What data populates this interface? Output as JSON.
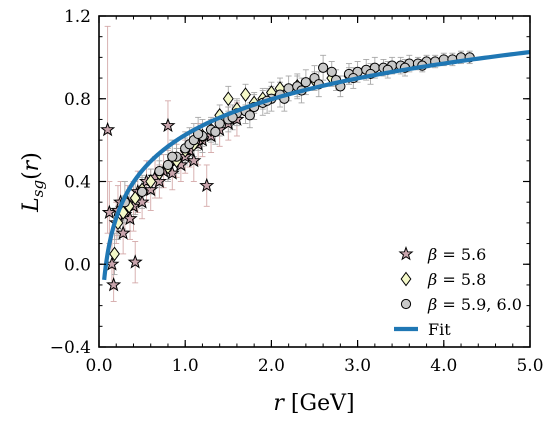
{
  "chart_data": {
    "type": "scatter",
    "xlabel": "r [GeV]",
    "ylabel": "L_sg(r)",
    "xlim": [
      0.0,
      5.0
    ],
    "ylim": [
      -0.4,
      1.2
    ],
    "xticks": [
      "0.0",
      "1.0",
      "2.0",
      "3.0",
      "4.0",
      "5.0"
    ],
    "yticks": [
      "−0.4",
      "0.0",
      "0.4",
      "0.8",
      "1.2"
    ],
    "grid": false,
    "legend_position": "bottom-right",
    "colors": {
      "fit": "#1f77b4",
      "star_fill": "#c9a5ad",
      "diamond_fill": "#f4f8c8",
      "circle_fill": "#c9c9c9",
      "errorbar": "#a8a8a8",
      "errorbar_star": "#d4a9a9"
    },
    "legend": [
      {
        "marker": "star",
        "label_prefix": "β = ",
        "label_value": "5.6"
      },
      {
        "marker": "diamond",
        "label_prefix": "β = ",
        "label_value": "5.8"
      },
      {
        "marker": "circle",
        "label_prefix": "β = ",
        "label_value": "5.9, 6.0"
      },
      {
        "marker": "line",
        "label_prefix": "",
        "label_value": "Fit"
      }
    ],
    "series": [
      {
        "marker": "star",
        "points": [
          [
            0.1,
            0.65,
            0.5
          ],
          [
            0.12,
            0.25,
            0.15
          ],
          [
            0.15,
            0.0,
            0.12
          ],
          [
            0.17,
            -0.1,
            0.08
          ],
          [
            0.2,
            0.2,
            0.1
          ],
          [
            0.22,
            0.26,
            0.12
          ],
          [
            0.25,
            0.3,
            0.1
          ],
          [
            0.28,
            0.15,
            0.1
          ],
          [
            0.3,
            0.24,
            0.08
          ],
          [
            0.33,
            0.3,
            0.08
          ],
          [
            0.36,
            0.22,
            0.1
          ],
          [
            0.4,
            0.28,
            0.12
          ],
          [
            0.42,
            0.01,
            0.1
          ],
          [
            0.45,
            0.35,
            0.1
          ],
          [
            0.5,
            0.3,
            0.08
          ],
          [
            0.55,
            0.4,
            0.1
          ],
          [
            0.6,
            0.36,
            0.1
          ],
          [
            0.65,
            0.42,
            0.1
          ],
          [
            0.7,
            0.4,
            0.08
          ],
          [
            0.75,
            0.45,
            0.08
          ],
          [
            0.8,
            0.67,
            0.12
          ],
          [
            0.85,
            0.44,
            0.08
          ],
          [
            0.9,
            0.5,
            0.08
          ],
          [
            0.95,
            0.48,
            0.08
          ],
          [
            1.0,
            0.52,
            0.08
          ],
          [
            1.05,
            0.55,
            0.08
          ],
          [
            1.1,
            0.5,
            0.1
          ],
          [
            1.15,
            0.58,
            0.1
          ],
          [
            1.2,
            0.6,
            0.08
          ],
          [
            1.25,
            0.38,
            0.1
          ],
          [
            1.3,
            0.62,
            0.08
          ],
          [
            1.4,
            0.65,
            0.08
          ],
          [
            1.5,
            0.68,
            0.08
          ],
          [
            1.6,
            0.7,
            0.08
          ]
        ]
      },
      {
        "marker": "diamond",
        "points": [
          [
            0.18,
            0.05,
            0.1
          ],
          [
            0.22,
            0.2,
            0.08
          ],
          [
            0.28,
            0.25,
            0.08
          ],
          [
            0.35,
            0.28,
            0.08
          ],
          [
            0.42,
            0.32,
            0.08
          ],
          [
            0.5,
            0.36,
            0.06
          ],
          [
            0.6,
            0.4,
            0.06
          ],
          [
            0.7,
            0.44,
            0.06
          ],
          [
            0.8,
            0.47,
            0.06
          ],
          [
            0.9,
            0.5,
            0.06
          ],
          [
            1.0,
            0.55,
            0.06
          ],
          [
            1.1,
            0.58,
            0.06
          ],
          [
            1.2,
            0.62,
            0.05
          ],
          [
            1.3,
            0.65,
            0.05
          ],
          [
            1.4,
            0.72,
            0.05
          ],
          [
            1.5,
            0.8,
            0.06
          ],
          [
            1.6,
            0.75,
            0.05
          ],
          [
            1.7,
            0.82,
            0.05
          ],
          [
            1.8,
            0.78,
            0.05
          ],
          [
            1.9,
            0.8,
            0.05
          ],
          [
            2.0,
            0.83,
            0.05
          ],
          [
            2.1,
            0.85,
            0.05
          ],
          [
            2.3,
            0.86,
            0.05
          ],
          [
            2.5,
            0.89,
            0.04
          ],
          [
            2.7,
            0.9,
            0.04
          ],
          [
            2.9,
            0.91,
            0.04
          ]
        ]
      },
      {
        "marker": "circle",
        "points": [
          [
            0.3,
            0.3,
            0.1
          ],
          [
            0.5,
            0.35,
            0.08
          ],
          [
            0.7,
            0.45,
            0.08
          ],
          [
            0.8,
            0.48,
            0.08
          ],
          [
            0.9,
            0.52,
            0.08
          ],
          [
            1.0,
            0.56,
            0.08
          ],
          [
            1.05,
            0.58,
            0.08
          ],
          [
            1.1,
            0.6,
            0.08
          ],
          [
            1.2,
            0.62,
            0.08
          ],
          [
            1.3,
            0.65,
            0.06
          ],
          [
            1.4,
            0.68,
            0.06
          ],
          [
            1.5,
            0.7,
            0.06
          ],
          [
            1.6,
            0.73,
            0.06
          ],
          [
            1.7,
            0.74,
            0.06
          ],
          [
            1.8,
            0.76,
            0.06
          ],
          [
            1.9,
            0.78,
            0.06
          ],
          [
            2.0,
            0.8,
            0.06
          ],
          [
            2.1,
            0.82,
            0.06
          ],
          [
            2.2,
            0.85,
            0.06
          ],
          [
            2.3,
            0.86,
            0.06
          ],
          [
            2.4,
            0.88,
            0.06
          ],
          [
            2.5,
            0.9,
            0.06
          ],
          [
            2.6,
            0.95,
            0.06
          ],
          [
            2.7,
            0.93,
            0.05
          ],
          [
            2.8,
            0.86,
            0.05
          ],
          [
            2.9,
            0.92,
            0.05
          ],
          [
            3.0,
            0.93,
            0.05
          ],
          [
            3.1,
            0.94,
            0.05
          ],
          [
            3.2,
            0.95,
            0.05
          ],
          [
            3.3,
            0.95,
            0.04
          ],
          [
            3.4,
            0.96,
            0.04
          ],
          [
            3.5,
            0.96,
            0.04
          ],
          [
            3.6,
            0.97,
            0.04
          ],
          [
            3.7,
            0.97,
            0.03
          ],
          [
            3.8,
            0.98,
            0.03
          ],
          [
            3.9,
            0.98,
            0.03
          ],
          [
            4.0,
            0.99,
            0.03
          ],
          [
            4.1,
            0.99,
            0.03
          ],
          [
            4.2,
            1.0,
            0.03
          ],
          [
            4.3,
            1.0,
            0.03
          ],
          [
            0.85,
            0.52,
            0.08
          ],
          [
            1.15,
            0.63,
            0.08
          ],
          [
            1.35,
            0.64,
            0.06
          ],
          [
            1.55,
            0.71,
            0.06
          ],
          [
            1.75,
            0.72,
            0.06
          ],
          [
            1.95,
            0.79,
            0.06
          ],
          [
            2.15,
            0.8,
            0.06
          ],
          [
            2.35,
            0.84,
            0.06
          ],
          [
            2.55,
            0.87,
            0.06
          ],
          [
            2.75,
            0.89,
            0.05
          ],
          [
            2.95,
            0.9,
            0.05
          ],
          [
            3.15,
            0.92,
            0.05
          ],
          [
            3.35,
            0.94,
            0.04
          ],
          [
            3.55,
            0.95,
            0.04
          ],
          [
            3.75,
            0.96,
            0.03
          ]
        ]
      }
    ],
    "fit": {
      "x_from": 0.06,
      "x_to": 5.0,
      "a": 0.625,
      "b": 0.249,
      "function": "a + b*ln(r)"
    }
  }
}
